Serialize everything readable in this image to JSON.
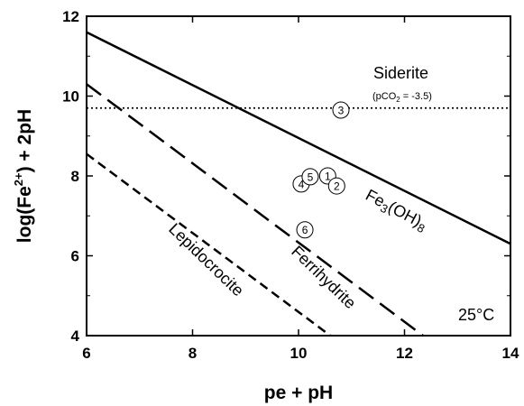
{
  "chart_data": {
    "type": "line",
    "title": "",
    "xlabel": "pe + pH",
    "ylabel_parts": {
      "prefix": "log(Fe",
      "sup": "2+",
      "suffix": ") + 2pH"
    },
    "xlim": [
      6,
      14
    ],
    "ylim": [
      4,
      12
    ],
    "xticks": [
      6,
      8,
      10,
      12,
      14
    ],
    "yticks": [
      4,
      6,
      8,
      10,
      12
    ],
    "grid": false,
    "series": [
      {
        "name": "Fe3(OH)8",
        "style": "solid",
        "x": [
          6,
          14
        ],
        "y": [
          11.6,
          6.3
        ]
      },
      {
        "name": "Ferrihydrite",
        "style": "long-dash",
        "x": [
          6,
          12.35
        ],
        "y": [
          10.3,
          4.0
        ]
      },
      {
        "name": "Lepidocrocite",
        "style": "short-dash",
        "x": [
          6,
          10.6
        ],
        "y": [
          8.55,
          4.0
        ]
      },
      {
        "name": "pCO2 = -3.5",
        "style": "dotted",
        "x": [
          6,
          14
        ],
        "y": [
          9.7,
          9.7
        ]
      }
    ],
    "points": [
      {
        "label": "1",
        "x": 10.55,
        "y": 8.0
      },
      {
        "label": "2",
        "x": 10.72,
        "y": 7.75
      },
      {
        "label": "3",
        "x": 10.8,
        "y": 9.65
      },
      {
        "label": "4",
        "x": 10.05,
        "y": 7.8
      },
      {
        "label": "5",
        "x": 10.22,
        "y": 7.98
      },
      {
        "label": "6",
        "x": 10.12,
        "y": 6.65
      }
    ],
    "annotations": {
      "siderite": "Siderite",
      "pco2_prefix": "(pCO",
      "pco2_sub": "2",
      "pco2_suffix": " = -3.5)",
      "fe3_prefix": "Fe",
      "fe3_sub1": "3",
      "fe3_mid": "(OH)",
      "fe3_sub2": "8",
      "ferrihydrite": "Ferrihydrite",
      "lepidocrocite": "Lepidocrocite",
      "temperature": "25°C"
    }
  }
}
